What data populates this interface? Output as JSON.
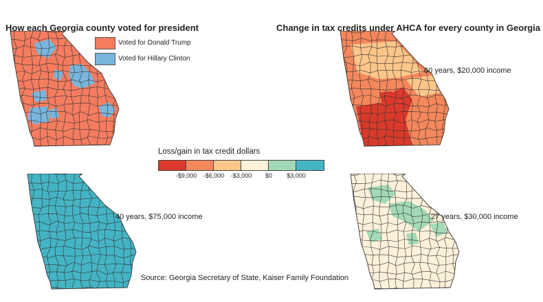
{
  "vote_map": {
    "title": "How each Georgia county voted for president",
    "legend": [
      {
        "label": "Voted for Donald Trump",
        "color": "#f47c5f"
      },
      {
        "label": "Voted for Hillary Clinton",
        "color": "#79b5dc"
      }
    ]
  },
  "tax_maps": {
    "title": "Change in tax credits under AHCA for every county in Georgia",
    "scenarios": [
      {
        "label": "60 years, $20,000 income"
      },
      {
        "label": "40 years, $75,000 income"
      },
      {
        "label": "27 years, $30,000 income"
      }
    ]
  },
  "scale": {
    "title": "Loss/gain in tax credit dollars",
    "colors": [
      "#d93a2b",
      "#f4875b",
      "#fdc68a",
      "#fdf1da",
      "#a3d9b6",
      "#44b4c4"
    ],
    "ticks": [
      "-$9,000",
      "-$6,000",
      "-$3,000",
      "$0",
      "$3,000"
    ]
  },
  "source": "Source: Georgia Secretary of State, Kaiser Family Foundation"
}
